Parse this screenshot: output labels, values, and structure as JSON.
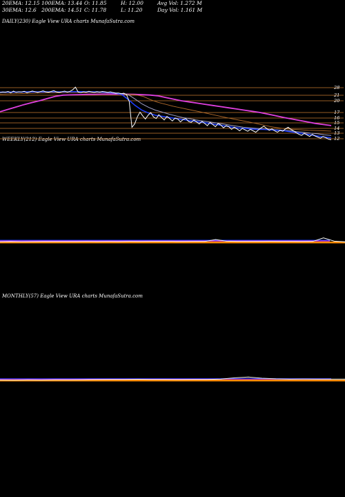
{
  "header": {
    "row1": [
      {
        "label": "20EMA:",
        "value": "12.15"
      },
      {
        "label": "100EMA:",
        "value": "13.44"
      },
      {
        "label": "O:",
        "value": "11.85"
      },
      {
        "label": "H:",
        "value": "12.00"
      },
      {
        "label": "Avg Vol:",
        "value": "1.272  M"
      }
    ],
    "row2": [
      {
        "label": "30EMA:",
        "value": "12.6"
      },
      {
        "label": "200EMA:",
        "value": "14.51"
      },
      {
        "label": "C:",
        "value": "11.78"
      },
      {
        "label": "L:",
        "value": "11.20"
      },
      {
        "label": "Day Vol:",
        "value": "1.161  M"
      }
    ]
  },
  "panels": {
    "daily": {
      "title": "DAILY(230) Eagle   View  URA charts MunafaSutra.com"
    },
    "weekly": {
      "title": "WEEKLY(212) Eagle   View  URA charts MunafaSutra.com"
    },
    "monthly": {
      "title": "MONTHLY(57) Eagle   View  URA charts MunafaSutra.com"
    }
  },
  "colors": {
    "background": "#000000",
    "price": "#ffffff",
    "ema20": "#1f3fff",
    "ema30": "#a0a0c8",
    "ema100": "#b06a2a",
    "ema200": "#e040e0",
    "gridline": "#c87a30",
    "orange_band": "#ff8c00"
  },
  "chart_data": [
    {
      "type": "line",
      "panel": "daily",
      "y_ticks": [
        28,
        21,
        20,
        17,
        16,
        15,
        14,
        13,
        12
      ],
      "series": [
        {
          "key": "price",
          "values": [
            23.5,
            24,
            23.8,
            24.5,
            23.2,
            24.8,
            23.6,
            24.2,
            23.9,
            24.6,
            23.4,
            24.1,
            24.9,
            24.3,
            23.7,
            24.4,
            25,
            24.2,
            23.8,
            24.5,
            25.2,
            24.1,
            23.6,
            24.3,
            24.8,
            23.9,
            24.6,
            26,
            28.5,
            24,
            23.5,
            24.2,
            23.8,
            24.6,
            24.1,
            23.6,
            24.3,
            23.9,
            24.5,
            24.2,
            23.7,
            24.1,
            23.5,
            22.8,
            23.1,
            22.4,
            22.9,
            21.6,
            19.8,
            14.2,
            14.8,
            16.2,
            17.1,
            16.4,
            15.8,
            16.5,
            17,
            16.2,
            15.9,
            16.6,
            16.1,
            15.6,
            16.3,
            15.9,
            15.4,
            16,
            15.8,
            15.2,
            15.7,
            15.9,
            15.3,
            15.1,
            15.6,
            15.2,
            14.8,
            15.3,
            14.9,
            14.5,
            15.1,
            14.7,
            14.3,
            14.9,
            14.6,
            14.1,
            14.5,
            14.3,
            13.8,
            14.2,
            13.9,
            13.5,
            14,
            13.7,
            13.4,
            13.8,
            13.5,
            13.2,
            13.7,
            14.1,
            14.4,
            14,
            13.6,
            13.9,
            13.5,
            13.2,
            13.6,
            13.4,
            13.9,
            14.2,
            13.8,
            13.5,
            13.1,
            12.8,
            12.6,
            13,
            12.7,
            12.4,
            12.8,
            12.5,
            12.3,
            12.1,
            12.4,
            12.2,
            11.9,
            11.78
          ]
        },
        {
          "key": "ema20",
          "values": [
            23.8,
            23.9,
            24,
            24,
            24.1,
            24.1,
            24.1,
            24.1,
            24.2,
            24.2,
            24.2,
            24.3,
            24.3,
            24.2,
            24.1,
            23.9,
            23.6,
            23,
            21.8,
            20.2,
            18.8,
            17.6,
            16.9,
            16.5,
            16.3,
            16.1,
            15.9,
            15.7,
            15.5,
            15.3,
            15.1,
            14.9,
            14.7,
            14.5,
            14.3,
            14.1,
            14,
            13.9,
            13.8,
            13.8,
            13.7,
            13.6,
            13.5,
            13.3,
            13.1,
            12.9,
            12.7,
            12.5,
            12.3,
            12.15
          ]
        },
        {
          "key": "ema30",
          "values": [
            23.6,
            23.7,
            23.8,
            23.9,
            24,
            24,
            24.1,
            24.1,
            24.1,
            24.2,
            24.2,
            24.2,
            24.2,
            24.2,
            24.1,
            24,
            23.8,
            23.4,
            22.6,
            21.5,
            20.3,
            19.2,
            18.3,
            17.6,
            17.1,
            16.7,
            16.4,
            16.1,
            15.9,
            15.6,
            15.4,
            15.2,
            15,
            14.8,
            14.6,
            14.4,
            14.2,
            14.1,
            14,
            13.9,
            13.8,
            13.7,
            13.6,
            13.5,
            13.3,
            13.2,
            13,
            12.9,
            12.7,
            12.6
          ]
        },
        {
          "key": "ema100",
          "values": [
            22,
            22.2,
            22.4,
            22.6,
            22.8,
            23,
            23.1,
            23.2,
            23.3,
            23.4,
            23.5,
            23.5,
            23.5,
            23.4,
            23.2,
            22.9,
            22.5,
            22,
            21.4,
            20.8,
            20.2,
            19.6,
            19.1,
            18.6,
            18.2,
            17.8,
            17.4,
            17,
            16.7,
            16.4,
            16.1,
            15.8,
            15.5,
            15.2,
            14.9,
            14.6,
            14.3,
            14.1,
            13.9,
            13.8,
            13.7,
            13.6,
            13.55,
            13.5,
            13.44
          ]
        },
        {
          "key": "ema200",
          "values": [
            17.2,
            17.8,
            18.4,
            19,
            19.5,
            20,
            20.4,
            20.8,
            21.1,
            21.4,
            21.6,
            21.8,
            21.9,
            22,
            22.1,
            22.1,
            22,
            21.8,
            21.5,
            21.2,
            20.9,
            20.6,
            20.3,
            20,
            19.7,
            19.4,
            19.1,
            18.8,
            18.5,
            18.2,
            17.9,
            17.6,
            17.3,
            17,
            16.7,
            16.4,
            16.1,
            15.8,
            15.5,
            15.2,
            14.9,
            14.7,
            14.51
          ]
        }
      ]
    },
    {
      "type": "line",
      "panel": "weekly",
      "series": [
        {
          "key": "price",
          "values": [
            0.1,
            0.12,
            0.1,
            0.11,
            0.12,
            0.13,
            0.12,
            0.13,
            0.14,
            0.13,
            0.14,
            0.13,
            0.15,
            0.14,
            0.15,
            0.16,
            0.15,
            0.14,
            0.15,
            0.16,
            0.5,
            0.2,
            0.15,
            0.16,
            0.15,
            0.17,
            0.16,
            0.15,
            0.14,
            0.15,
            0.8,
            0.2,
            0.1
          ]
        }
      ]
    },
    {
      "type": "line",
      "panel": "monthly",
      "series": [
        {
          "key": "price",
          "values": [
            0.08,
            0.05,
            0.1,
            0.08,
            0.12,
            0.14,
            0.15,
            0.18,
            0.2,
            0.22,
            0.25,
            0.22,
            0.2,
            0.18,
            0.2,
            0.22,
            0.3,
            0.6,
            0.8,
            0.5,
            0.35,
            0.3,
            0.32,
            0.28,
            0.3,
            0.3
          ]
        }
      ]
    }
  ]
}
